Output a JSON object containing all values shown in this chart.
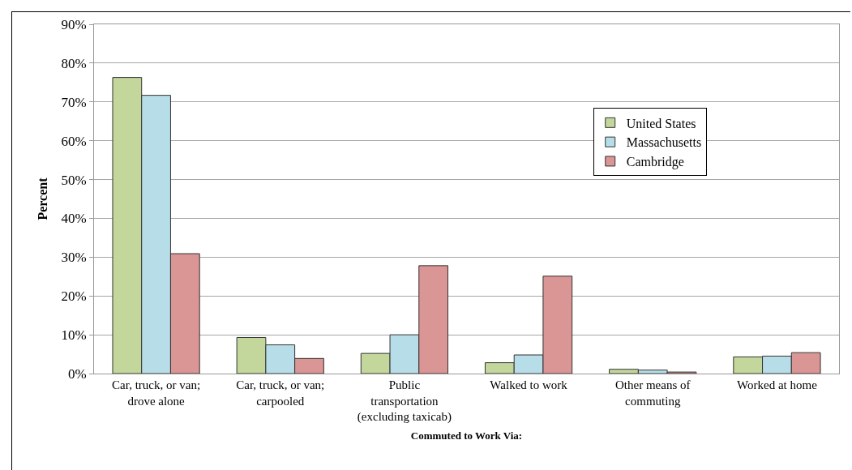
{
  "chart_data": {
    "type": "bar",
    "xlabel": "Commuted to Work Via:",
    "ylabel": "Percent",
    "categories": [
      "Car, truck, or van; drove alone",
      "Car, truck, or van; carpooled",
      "Public transportation (excluding taxicab)",
      "Walked to work",
      "Other means of commuting",
      "Worked at home"
    ],
    "series": [
      {
        "name": "United States",
        "color": "#c3d69b",
        "values": [
          76.3,
          9.3,
          5.2,
          2.8,
          1.1,
          4.3
        ]
      },
      {
        "name": "Massachusetts",
        "color": "#b7dde8",
        "values": [
          71.7,
          7.4,
          10.0,
          4.8,
          0.9,
          4.5
        ]
      },
      {
        "name": "Cambridge",
        "color": "#d99694",
        "values": [
          30.9,
          3.9,
          27.8,
          25.1,
          0.4,
          5.4
        ]
      }
    ],
    "ylim": [
      0,
      90
    ],
    "yticks": [
      {
        "value": 0,
        "label": "0%"
      },
      {
        "value": 10,
        "label": "10%"
      },
      {
        "value": 20,
        "label": "20%"
      },
      {
        "value": 30,
        "label": "30%"
      },
      {
        "value": 40,
        "label": "40%"
      },
      {
        "value": 50,
        "label": "50%"
      },
      {
        "value": 60,
        "label": "60%"
      },
      {
        "value": 70,
        "label": "70%"
      },
      {
        "value": 80,
        "label": "80%"
      },
      {
        "value": 90,
        "label": "90%"
      }
    ],
    "grid": "y",
    "legend": "top right"
  }
}
